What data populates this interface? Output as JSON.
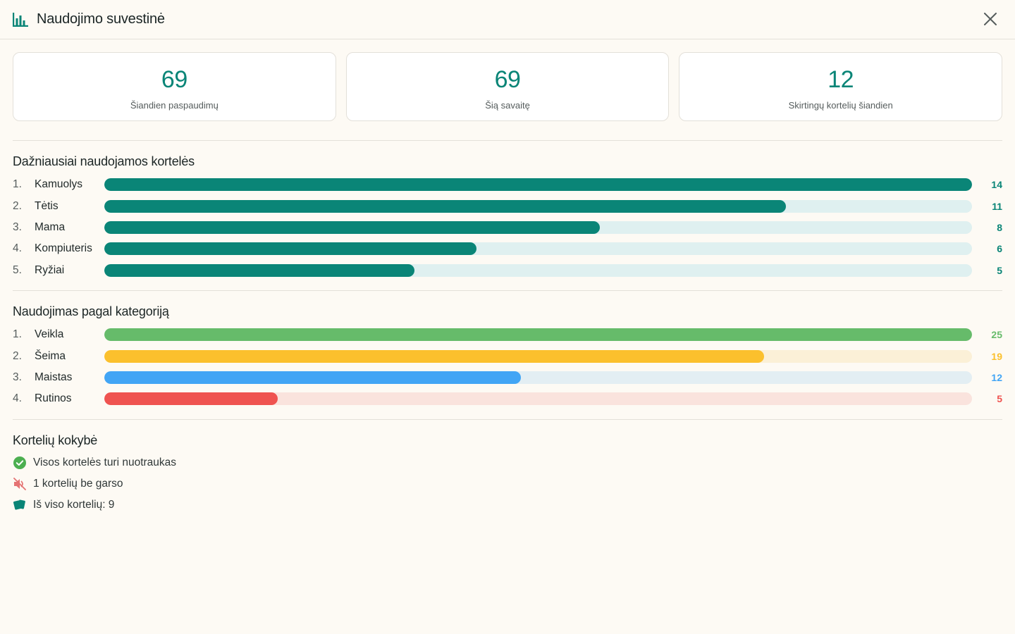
{
  "header": {
    "title": "Naudojimo suvestinė",
    "logo_icon": "bar-chart-icon",
    "close_icon": "close-icon"
  },
  "stats": [
    {
      "value": "69",
      "label": "Šiandien paspaudimų"
    },
    {
      "value": "69",
      "label": "Šią savaitę"
    },
    {
      "value": "12",
      "label": "Skirtingų kortelių šiandien"
    }
  ],
  "top_cards": {
    "title": "Dažniausiai naudojamos kortelės",
    "color": "#0a8577",
    "track_color": "#dff0f0",
    "items": [
      {
        "rank": "1.",
        "label": "Kamuolys",
        "count": "14",
        "value": 14
      },
      {
        "rank": "2.",
        "label": "Tėtis",
        "count": "11",
        "value": 11
      },
      {
        "rank": "3.",
        "label": "Mama",
        "count": "8",
        "value": 8
      },
      {
        "rank": "4.",
        "label": "Kompiuteris",
        "count": "6",
        "value": 6
      },
      {
        "rank": "5.",
        "label": "Ryžiai",
        "count": "5",
        "value": 5
      }
    ]
  },
  "categories": {
    "title": "Naudojimas pagal kategoriją",
    "items": [
      {
        "rank": "1.",
        "label": "Veikla",
        "count": "25",
        "value": 25,
        "color": "#66bb6a",
        "track": "#e6f2e6"
      },
      {
        "rank": "2.",
        "label": "Šeima",
        "count": "19",
        "value": 19,
        "color": "#fbc02d",
        "track": "#fbf0d7"
      },
      {
        "rank": "3.",
        "label": "Maistas",
        "count": "12",
        "value": 12,
        "color": "#42a5f5",
        "track": "#e3eef3"
      },
      {
        "rank": "4.",
        "label": "Rutinos",
        "count": "5",
        "value": 5,
        "color": "#ef5350",
        "track": "#fae3dd"
      }
    ]
  },
  "quality": {
    "title": "Kortelių kokybė",
    "items": [
      {
        "icon": "check-circle-icon",
        "text": "Visos kortelės turi nuotraukas",
        "color": "#4caf50"
      },
      {
        "icon": "muted-speaker-icon",
        "text": "1 kortelių be garso",
        "color": "#e57373"
      },
      {
        "icon": "cards-icon",
        "text": "Iš viso kortelių: 9",
        "color": "#0a8577"
      }
    ]
  },
  "chart_data": [
    {
      "type": "bar",
      "title": "Dažniausiai naudojamos kortelės",
      "categories": [
        "Kamuolys",
        "Tėtis",
        "Mama",
        "Kompiuteris",
        "Ryžiai"
      ],
      "values": [
        14,
        11,
        8,
        6,
        5
      ]
    },
    {
      "type": "bar",
      "title": "Naudojimas pagal kategoriją",
      "categories": [
        "Veikla",
        "Šeima",
        "Maistas",
        "Rutinos"
      ],
      "values": [
        25,
        19,
        12,
        5
      ]
    }
  ]
}
